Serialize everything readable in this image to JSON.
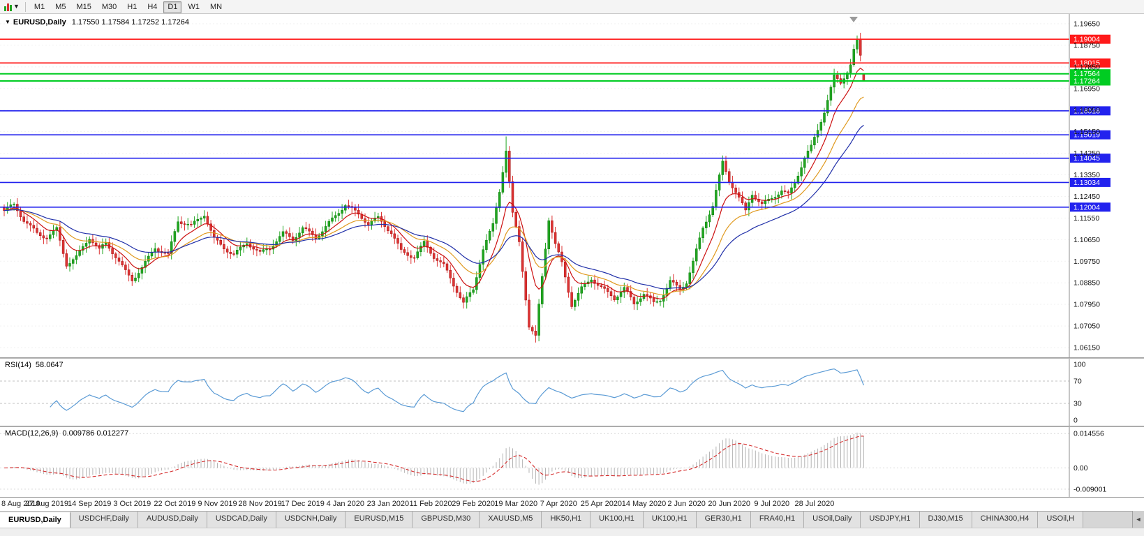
{
  "toolbar": {
    "timeframes": [
      "M1",
      "M5",
      "M15",
      "M30",
      "H1",
      "H4",
      "D1",
      "W1",
      "MN"
    ],
    "active_timeframe": "D1",
    "icons": [
      "candlestick-chart-icon",
      "chevron-down-icon"
    ]
  },
  "chart_header": {
    "symbol": "EURUSD,Daily",
    "ohlc": "1.17550 1.17584 1.17252 1.17264",
    "open": "1.17550",
    "high": "1.17584",
    "low": "1.17252",
    "close": "1.17264"
  },
  "tabs": {
    "active_index": 0,
    "items": [
      "EURUSD,Daily",
      "USDCHF,Daily",
      "AUDUSD,Daily",
      "USDCAD,Daily",
      "USDCNH,Daily",
      "EURUSD,M15",
      "GBPUSD,M30",
      "XAUUSD,M5",
      "HK50,H1",
      "UK100,H1",
      "UK100,H1",
      "GER30,H1",
      "FRA40,H1",
      "USOil,Daily",
      "USDJPY,H1",
      "DJ30,M15",
      "CHINA300,H4",
      "USOil,H"
    ],
    "scroll_arrow": "◄"
  },
  "chart_data": {
    "type": "candlestick",
    "symbol": "EURUSD",
    "timeframe": "Daily",
    "bars": 263,
    "x_label_every": 13,
    "x_labels": [
      "8 Aug 2019",
      "27 Aug 2019",
      "14 Sep 2019",
      "3 Oct 2019",
      "22 Oct 2019",
      "9 Nov 2019",
      "28 Nov 2019",
      "17 Dec 2019",
      "4 Jan 2020",
      "23 Jan 2020",
      "11 Feb 2020",
      "29 Feb 2020",
      "19 Mar 2020",
      "7 Apr 2020",
      "25 Apr 2020",
      "14 May 2020",
      "2 Jun 2020",
      "20 Jun 2020",
      "9 Jul 2020",
      "28 Jul 2020"
    ],
    "price_axis": {
      "labels": [
        "1.19650",
        "1.18750",
        "1.17850",
        "1.16950",
        "1.16050",
        "1.15150",
        "1.14250",
        "1.13350",
        "1.12450",
        "1.11550",
        "1.10650",
        "1.09750",
        "1.08850",
        "1.07950",
        "1.07050",
        "1.06150"
      ]
    },
    "anchors": [
      [
        0,
        1.1175
      ],
      [
        3,
        1.1198
      ],
      [
        6,
        1.114
      ],
      [
        10,
        1.1095
      ],
      [
        13,
        1.1085
      ],
      [
        16,
        1.112
      ],
      [
        19,
        1.097
      ],
      [
        22,
        1.0992
      ],
      [
        26,
        1.1065
      ],
      [
        29,
        1.101
      ],
      [
        31,
        1.104
      ],
      [
        34,
        1.099
      ],
      [
        37,
        1.0935
      ],
      [
        39,
        1.0905
      ],
      [
        42,
        1.096
      ],
      [
        46,
        1.104
      ],
      [
        50,
        1.1
      ],
      [
        53,
        1.1135
      ],
      [
        57,
        1.111
      ],
      [
        61,
        1.1165
      ],
      [
        64,
        1.107
      ],
      [
        67,
        1.104
      ],
      [
        70,
        1.1015
      ],
      [
        74,
        1.106
      ],
      [
        78,
        1.1005
      ],
      [
        81,
        1.102
      ],
      [
        85,
        1.108
      ],
      [
        88,
        1.106
      ],
      [
        91,
        1.1115
      ],
      [
        95,
        1.1085
      ],
      [
        99,
        1.1145
      ],
      [
        104,
        1.1212
      ],
      [
        108,
        1.116
      ],
      [
        111,
        1.112
      ],
      [
        114,
        1.1145
      ],
      [
        118,
        1.1095
      ],
      [
        121,
        1.1025
      ],
      [
        125,
        1.1005
      ],
      [
        128,
        1.106
      ],
      [
        131,
        1.0995
      ],
      [
        134,
        1.095
      ],
      [
        137,
        1.0865
      ],
      [
        140,
        1.079
      ],
      [
        143,
        1.085
      ],
      [
        146,
        1.103
      ],
      [
        149,
        1.1135
      ],
      [
        151,
        1.128
      ],
      [
        153,
        1.145
      ],
      [
        155,
        1.118
      ],
      [
        157,
        1.106
      ],
      [
        160,
        1.07
      ],
      [
        162,
        1.065
      ],
      [
        163,
        1.078
      ],
      [
        166,
        1.114
      ],
      [
        168,
        1.1035
      ],
      [
        170,
        1.096
      ],
      [
        173,
        1.0795
      ],
      [
        176,
        1.087
      ],
      [
        179,
        1.0915
      ],
      [
        182,
        1.0875
      ],
      [
        186,
        1.082
      ],
      [
        189,
        1.0855
      ],
      [
        192,
        1.0785
      ],
      [
        195,
        1.083
      ],
      [
        198,
        1.0795
      ],
      [
        200,
        1.0815
      ],
      [
        203,
        1.09
      ],
      [
        206,
        1.087
      ],
      [
        208,
        1.09
      ],
      [
        210,
        1.098
      ],
      [
        213,
        1.1115
      ],
      [
        216,
        1.12
      ],
      [
        219,
        1.1375
      ],
      [
        221,
        1.13
      ],
      [
        223,
        1.1255
      ],
      [
        226,
        1.118
      ],
      [
        228,
        1.126
      ],
      [
        231,
        1.122
      ],
      [
        234,
        1.125
      ],
      [
        237,
        1.128
      ],
      [
        239,
        1.1255
      ],
      [
        241,
        1.13
      ],
      [
        244,
        1.14
      ],
      [
        246,
        1.144
      ],
      [
        248,
        1.151
      ],
      [
        250,
        1.159
      ],
      [
        253,
        1.174
      ],
      [
        255,
        1.172
      ],
      [
        257,
        1.1775
      ],
      [
        258,
        1.1805
      ],
      [
        259,
        1.1865
      ],
      [
        260,
        1.1905
      ],
      [
        261,
        1.184
      ],
      [
        262,
        1.1726
      ]
    ],
    "wiggle": {
      "a1": 0.0008,
      "f1": 0.9,
      "a2": 0.0012,
      "f2": 0.23,
      "p2": 1.2,
      "wick": 0.002
    },
    "overrides": [
      {
        "i": 140,
        "l": 1.0778
      },
      {
        "i": 153,
        "h": 1.1495
      },
      {
        "i": 162,
        "l": 1.0636
      },
      {
        "i": 260,
        "h": 1.1916
      }
    ],
    "last_bar": {
      "open": 1.1755,
      "high": 1.17584,
      "low": 1.17252,
      "close": 1.17264
    },
    "moving_averages": [
      {
        "name": "fast",
        "type": "ema",
        "period": 9,
        "color": "#cc1111"
      },
      {
        "name": "medium",
        "type": "ema",
        "period": 20,
        "color": "#e09a20"
      },
      {
        "name": "slow",
        "type": "ema",
        "period": 34,
        "color": "#202fa8"
      }
    ],
    "hlines": [
      {
        "price": 1.19004,
        "label": "1.19004",
        "color": "#ff1a1a",
        "width": 1.6
      },
      {
        "price": 1.18015,
        "label": "1.18015",
        "color": "#ff1a1a",
        "width": 1.6
      },
      {
        "price": 1.17564,
        "label": "1.17564",
        "color": "#00cc22",
        "width": 2
      },
      {
        "price": 1.17264,
        "label": "1.17264",
        "color": "#00cc22",
        "width": 2
      },
      {
        "price": 1.16018,
        "label": "1.16018",
        "color": "#2222ee",
        "width": 1.6
      },
      {
        "price": 1.15019,
        "label": "1.15019",
        "color": "#2222ee",
        "width": 1.6
      },
      {
        "price": 1.14045,
        "label": "1.14045",
        "color": "#2222ee",
        "width": 1.6
      },
      {
        "price": 1.13034,
        "label": "1.13034",
        "color": "#2222ee",
        "width": 1.6
      },
      {
        "price": 1.12004,
        "label": "1.12004",
        "color": "#2222ee",
        "width": 1.6
      }
    ],
    "rsi": {
      "label": "RSI(14)",
      "value": "58.0647",
      "period": 14,
      "levels": [
        70,
        30
      ],
      "axis_labels": [
        [
          "100",
          100
        ],
        [
          "70",
          70
        ],
        [
          "30",
          30
        ],
        [
          "0",
          0
        ]
      ],
      "color": "#5b9bd5"
    },
    "macd": {
      "label": "MACD(12,26,9)",
      "values": "0.009786 0.012277",
      "fast": 12,
      "slow": 26,
      "signal": 9,
      "axis_labels": [
        [
          "0.014556",
          0.014556
        ],
        [
          "0.00",
          0
        ],
        [
          "-0.009001",
          -0.009001
        ]
      ],
      "hist_color": "#b4b4b4",
      "signal_color": "#d42a2a"
    },
    "colors": {
      "up": "#21a621",
      "up_edge": "#0c7c0c",
      "down": "#dd3333",
      "down_edge": "#a31111",
      "axis_text": "#111111"
    }
  }
}
